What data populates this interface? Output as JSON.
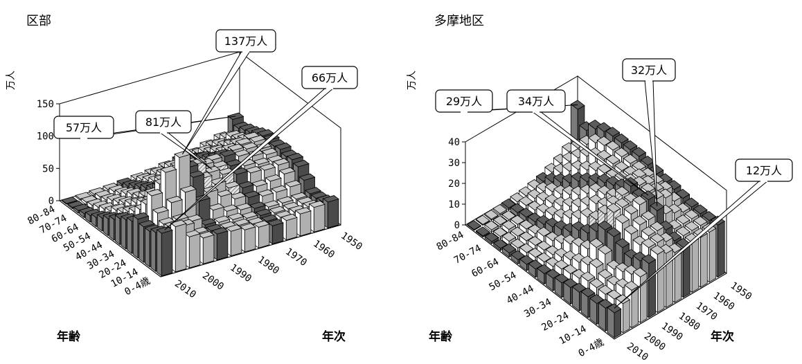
{
  "chart_data": [
    {
      "type": "bar3d",
      "title": "区部",
      "unit_label": "万人",
      "xlabel": "年齢",
      "ylabel": "年次",
      "zlim": [
        0,
        150
      ],
      "z_ticks": [
        "0",
        "50",
        "100",
        "150"
      ],
      "age_tick_labels": [
        "80-84",
        "70-74",
        "60-64",
        "50-54",
        "40-44",
        "30-34",
        "20-24",
        "10-14",
        "0-4歳"
      ],
      "year_tick_labels": [
        "1950",
        "1960",
        "1970",
        "1980",
        "1990",
        "2000",
        "2010"
      ],
      "series_years": [
        1950,
        1955,
        1960,
        1965,
        1970,
        1975,
        1980,
        1985,
        1990,
        1995,
        2000,
        2005,
        2010
      ],
      "highlight_years": [
        1950,
        1970,
        1990,
        2010
      ],
      "age_groups": [
        "0-4",
        "5-9",
        "10-14",
        "15-19",
        "20-24",
        "25-29",
        "30-34",
        "35-39",
        "40-44",
        "45-49",
        "50-54",
        "55-59",
        "60-64",
        "65-69",
        "70-74",
        "75-79",
        "80-84"
      ],
      "values": [
        [
          66,
          70,
          48,
          40,
          40,
          38,
          34,
          32,
          28,
          30,
          34,
          38,
          40
        ],
        [
          60,
          62,
          58,
          40,
          38,
          36,
          34,
          30,
          28,
          28,
          30,
          32,
          34
        ],
        [
          55,
          60,
          60,
          52,
          40,
          38,
          36,
          32,
          30,
          28,
          28,
          30,
          32
        ],
        [
          55,
          70,
          80,
          90,
          70,
          50,
          42,
          38,
          34,
          30,
          30,
          30,
          32
        ],
        [
          60,
          90,
          120,
          137,
          100,
          70,
          58,
          48,
          44,
          40,
          40,
          42,
          46
        ],
        [
          50,
          70,
          95,
          110,
          108,
          85,
          70,
          58,
          52,
          48,
          50,
          55,
          60
        ],
        [
          45,
          55,
          70,
          85,
          95,
          100,
          81,
          72,
          66,
          62,
          60,
          62,
          64
        ],
        [
          40,
          45,
          55,
          62,
          72,
          82,
          86,
          76,
          72,
          66,
          62,
          60,
          62
        ],
        [
          32,
          38,
          46,
          52,
          58,
          66,
          74,
          80,
          80,
          74,
          68,
          64,
          66
        ],
        [
          26,
          30,
          38,
          46,
          50,
          56,
          62,
          68,
          74,
          76,
          72,
          66,
          64
        ],
        [
          20,
          26,
          30,
          36,
          44,
          50,
          54,
          58,
          64,
          70,
          72,
          70,
          66
        ],
        [
          14,
          18,
          24,
          28,
          34,
          42,
          48,
          52,
          56,
          60,
          66,
          68,
          66
        ],
        [
          10,
          14,
          18,
          24,
          28,
          34,
          40,
          46,
          50,
          54,
          58,
          60,
          62
        ],
        [
          6,
          10,
          14,
          18,
          22,
          26,
          32,
          38,
          42,
          46,
          50,
          54,
          57
        ],
        [
          4,
          6,
          8,
          12,
          16,
          20,
          24,
          28,
          34,
          40,
          44,
          50,
          54
        ],
        [
          2,
          4,
          6,
          8,
          10,
          14,
          18,
          22,
          26,
          30,
          36,
          42,
          50
        ],
        [
          1,
          2,
          3,
          4,
          6,
          8,
          10,
          14,
          18,
          22,
          28,
          34,
          57
        ]
      ],
      "callouts": [
        {
          "label": "57万人",
          "age_index": 16,
          "year_index": 12
        },
        {
          "label": "81万人",
          "age_index": 6,
          "year_index": 6
        },
        {
          "label": "137万人",
          "age_index": 4,
          "year_index": 3
        },
        {
          "label": "66万人",
          "age_index": 0,
          "year_index": 0
        }
      ]
    },
    {
      "type": "bar3d",
      "title": "多摩地区",
      "unit_label": "万人",
      "xlabel": "年齢",
      "ylabel": "年次",
      "zlim": [
        0,
        40
      ],
      "z_ticks": [
        "0",
        "10",
        "20",
        "30",
        "40"
      ],
      "age_tick_labels": [
        "80-84",
        "70-74",
        "60-64",
        "50-54",
        "40-44",
        "30-34",
        "20-24",
        "10-14",
        "0-4歳"
      ],
      "year_tick_labels": [
        "1950",
        "1960",
        "1970",
        "1980",
        "1990",
        "2000",
        "2010"
      ],
      "series_years": [
        1950,
        1955,
        1960,
        1965,
        1970,
        1975,
        1980,
        1985,
        1990,
        1995,
        2000,
        2005,
        2010
      ],
      "highlight_years": [
        1950,
        1970,
        1990,
        2010
      ],
      "age_groups": [
        "0-4",
        "5-9",
        "10-14",
        "15-19",
        "20-24",
        "25-29",
        "30-34",
        "35-39",
        "40-44",
        "45-49",
        "50-54",
        "55-59",
        "60-64",
        "65-69",
        "70-74",
        "75-79",
        "80-84"
      ],
      "values": [
        [
          12,
          14,
          18,
          22,
          26,
          28,
          26,
          24,
          24,
          24,
          24,
          24,
          25
        ],
        [
          11,
          13,
          16,
          20,
          24,
          28,
          28,
          26,
          24,
          24,
          24,
          24,
          24
        ],
        [
          10,
          12,
          14,
          18,
          22,
          26,
          28,
          28,
          26,
          24,
          24,
          24,
          24
        ],
        [
          10,
          12,
          14,
          16,
          24,
          28,
          30,
          30,
          32,
          28,
          26,
          24,
          24
        ],
        [
          9,
          12,
          16,
          20,
          26,
          30,
          32,
          34,
          34,
          32,
          30,
          26,
          25
        ],
        [
          8,
          10,
          14,
          20,
          26,
          32,
          32,
          32,
          32,
          32,
          30,
          28,
          26
        ],
        [
          7,
          9,
          12,
          16,
          22,
          28,
          30,
          32,
          34,
          32,
          30,
          28,
          26
        ],
        [
          6,
          8,
          10,
          14,
          18,
          22,
          26,
          28,
          30,
          30,
          30,
          28,
          27
        ],
        [
          5,
          6,
          8,
          12,
          16,
          20,
          24,
          26,
          28,
          28,
          28,
          28,
          28
        ],
        [
          4,
          5,
          6,
          9,
          12,
          16,
          20,
          24,
          26,
          26,
          27,
          28,
          29
        ],
        [
          3,
          4,
          5,
          7,
          10,
          13,
          16,
          20,
          23,
          25,
          27,
          28,
          29
        ],
        [
          2,
          3,
          4,
          6,
          8,
          10,
          13,
          16,
          20,
          23,
          26,
          28,
          29
        ],
        [
          2,
          2,
          3,
          4,
          6,
          8,
          10,
          13,
          17,
          20,
          24,
          27,
          29
        ],
        [
          1,
          2,
          2,
          3,
          4,
          6,
          8,
          10,
          13,
          17,
          21,
          25,
          28
        ],
        [
          1,
          1,
          2,
          2,
          3,
          4,
          6,
          8,
          10,
          13,
          17,
          21,
          26
        ],
        [
          0.5,
          1,
          1,
          1,
          2,
          3,
          4,
          5,
          7,
          9,
          12,
          16,
          22
        ],
        [
          0.3,
          0.4,
          0.5,
          0.7,
          1,
          1.5,
          2,
          3,
          4,
          6,
          8,
          11,
          29
        ]
      ],
      "callouts": [
        {
          "label": "29万人",
          "age_index": 16,
          "year_index": 12
        },
        {
          "label": "34万人",
          "age_index": 4,
          "year_index": 8
        },
        {
          "label": "32万人",
          "age_index": 3,
          "year_index": 8
        },
        {
          "label": "12万人",
          "age_index": 0,
          "year_index": 0
        }
      ]
    }
  ],
  "colors": {
    "highlight": "#5c5c5c",
    "normal": "#c8c8c8",
    "front_white": "#ffffff",
    "hatch": "#a8a8a8"
  }
}
